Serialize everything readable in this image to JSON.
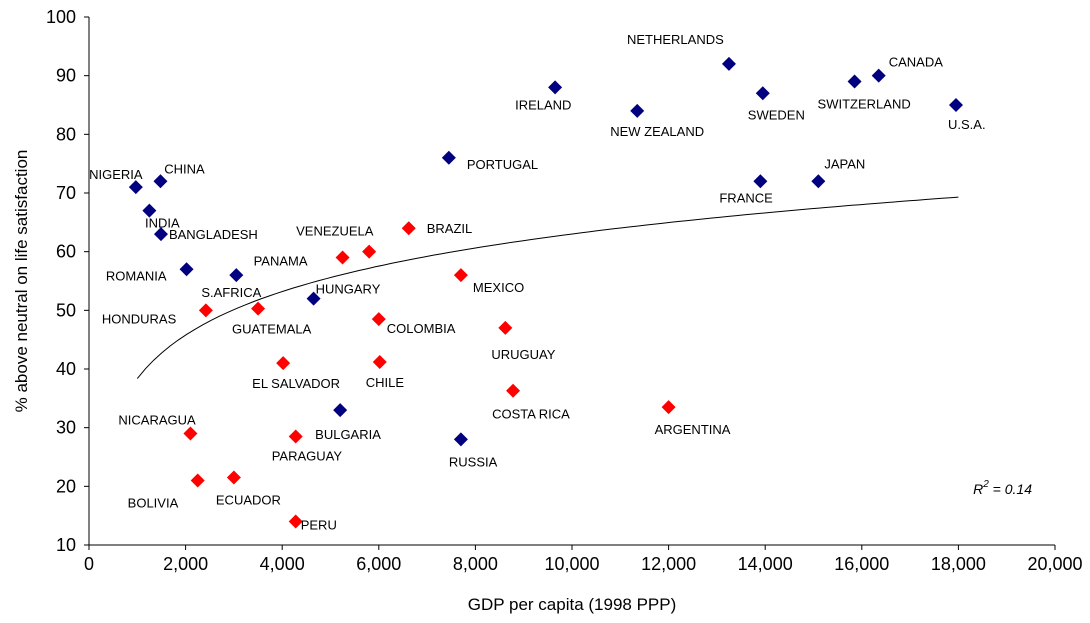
{
  "chart_data": {
    "type": "scatter",
    "xlabel": "GDP per capita (1998 PPP)",
    "ylabel": "% above neutral on life satisfaction",
    "xlim": [
      0,
      20000
    ],
    "ylim": [
      10,
      100
    ],
    "x_ticks": [
      "0",
      "2,000",
      "4,000",
      "6,000",
      "8,000",
      "10,000",
      "12,000",
      "14,000",
      "16,000",
      "18,000",
      "20,000"
    ],
    "y_ticks": [
      "10",
      "20",
      "30",
      "40",
      "50",
      "60",
      "70",
      "80",
      "90",
      "100"
    ],
    "grid": false,
    "colors": {
      "group_a": "#000080",
      "group_b": "#ff0000",
      "trend": "#000000"
    },
    "annotation": {
      "r2_prefix": "R",
      "r2_sup": "2",
      "r2_value": " = 0.14"
    },
    "trendline": {
      "type": "logarithmic",
      "a": 10.7,
      "b": 21.37,
      "x_range": [
        1000,
        18000
      ]
    },
    "points": [
      {
        "label": "NIGERIA",
        "x": 970,
        "y": 71,
        "group": "group_a"
      },
      {
        "label": "CHINA",
        "x": 1480,
        "y": 72,
        "group": "group_a"
      },
      {
        "label": "INDIA",
        "x": 1250,
        "y": 67,
        "group": "group_a"
      },
      {
        "label": "BANGLADESH",
        "x": 1490,
        "y": 63,
        "group": "group_a"
      },
      {
        "label": "ROMANIA",
        "x": 2020,
        "y": 57,
        "group": "group_a"
      },
      {
        "label": "S.AFRICA",
        "x": 3050,
        "y": 56,
        "group": "group_a"
      },
      {
        "label": "HUNGARY",
        "x": 4650,
        "y": 52,
        "group": "group_a"
      },
      {
        "label": "BULGARIA",
        "x": 5200,
        "y": 33,
        "group": "group_a"
      },
      {
        "label": "RUSSIA",
        "x": 7700,
        "y": 28,
        "group": "group_a"
      },
      {
        "label": "PORTUGAL",
        "x": 7450,
        "y": 76,
        "group": "group_a"
      },
      {
        "label": "IRELAND",
        "x": 9650,
        "y": 88,
        "group": "group_a"
      },
      {
        "label": "NEW ZEALAND",
        "x": 11350,
        "y": 84,
        "group": "group_a"
      },
      {
        "label": "NETHERLANDS",
        "x": 13250,
        "y": 92,
        "group": "group_a"
      },
      {
        "label": "SWEDEN",
        "x": 13950,
        "y": 87,
        "group": "group_a"
      },
      {
        "label": "FRANCE",
        "x": 13900,
        "y": 72,
        "group": "group_a"
      },
      {
        "label": "JAPAN",
        "x": 15100,
        "y": 72,
        "group": "group_a"
      },
      {
        "label": "SWITZERLAND",
        "x": 15850,
        "y": 89,
        "group": "group_a"
      },
      {
        "label": "CANADA",
        "x": 16350,
        "y": 90,
        "group": "group_a"
      },
      {
        "label": "U.S.A.",
        "x": 17950,
        "y": 85,
        "group": "group_a"
      },
      {
        "label": "HONDURAS",
        "x": 2420,
        "y": 50,
        "group": "group_b"
      },
      {
        "label": "GUATEMALA",
        "x": 3500,
        "y": 50.3,
        "group": "group_b"
      },
      {
        "label": "NICARAGUA",
        "x": 2100,
        "y": 29,
        "group": "group_b"
      },
      {
        "label": "BOLIVIA",
        "x": 2250,
        "y": 21,
        "group": "group_b"
      },
      {
        "label": "ECUADOR",
        "x": 3000,
        "y": 21.5,
        "group": "group_b"
      },
      {
        "label": "PARAGUAY",
        "x": 4280,
        "y": 28.5,
        "group": "group_b"
      },
      {
        "label": "PERU",
        "x": 4280,
        "y": 14,
        "group": "group_b"
      },
      {
        "label": "EL SALVADOR",
        "x": 4020,
        "y": 41,
        "group": "group_b"
      },
      {
        "label": "PANAMA",
        "x": 5250,
        "y": 59,
        "group": "group_b"
      },
      {
        "label": "VENEZUELA",
        "x": 5800,
        "y": 60,
        "group": "group_b"
      },
      {
        "label": "COLOMBIA",
        "x": 6000,
        "y": 48.5,
        "group": "group_b"
      },
      {
        "label": "CHILE",
        "x": 6020,
        "y": 41.2,
        "group": "group_b"
      },
      {
        "label": "BRAZIL",
        "x": 6620,
        "y": 64,
        "group": "group_b"
      },
      {
        "label": "MEXICO",
        "x": 7700,
        "y": 56,
        "group": "group_b"
      },
      {
        "label": "URUGUAY",
        "x": 8620,
        "y": 47,
        "group": "group_b"
      },
      {
        "label": "COSTA RICA",
        "x": 8780,
        "y": 36.3,
        "group": "group_b"
      },
      {
        "label": "ARGENTINA",
        "x": 12000,
        "y": 33.5,
        "group": "group_b"
      }
    ]
  }
}
